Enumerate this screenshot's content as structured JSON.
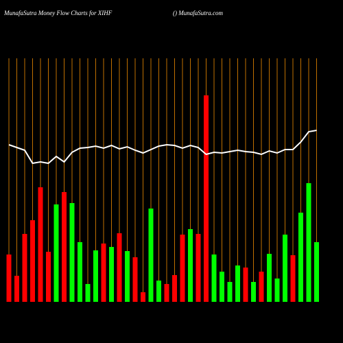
{
  "chart_data": {
    "type": "bar",
    "title": "MunafaSutra  Money Flow  Charts for XIHF",
    "subtitle": "() MunafaSutra.com",
    "ylim": [
      0,
      360
    ],
    "gridline_color": "#c07000",
    "values": [
      69,
      38,
      99,
      119,
      167,
      73,
      142,
      160,
      144,
      87,
      26,
      75,
      85,
      80,
      100,
      74,
      65,
      14,
      136,
      31,
      26,
      39,
      98,
      106,
      99,
      301,
      69,
      44,
      29,
      53,
      50,
      29,
      44,
      70,
      34,
      98,
      68,
      130,
      173,
      87
    ],
    "colors": [
      "#ff0000",
      "#ff0000",
      "#ff0000",
      "#ff0000",
      "#ff0000",
      "#ff0000",
      "#00ff00",
      "#ff0000",
      "#00ff00",
      "#00ff00",
      "#00ff00",
      "#00ff00",
      "#ff0000",
      "#00ff00",
      "#ff0000",
      "#00ff00",
      "#ff0000",
      "#ff0000",
      "#00ff00",
      "#00ff00",
      "#ff0000",
      "#ff0000",
      "#ff0000",
      "#00ff00",
      "#ff0000",
      "#ff0000",
      "#00ff00",
      "#00ff00",
      "#00ff00",
      "#00ff00",
      "#ff0000",
      "#00ff00",
      "#ff0000",
      "#00ff00",
      "#00ff00",
      "#00ff00",
      "#ff0000",
      "#00ff00",
      "#00ff00",
      "#00ff00"
    ],
    "line": {
      "color": "#ffffff",
      "values": [
        229,
        225,
        221,
        202,
        204,
        202,
        212,
        204,
        218,
        224,
        225,
        227,
        224,
        228,
        223,
        226,
        221,
        217,
        222,
        227,
        229,
        228,
        224,
        228,
        225,
        215,
        218,
        217,
        219,
        221,
        219,
        218,
        215,
        220,
        217,
        222,
        222,
        233,
        248,
        250
      ]
    }
  }
}
